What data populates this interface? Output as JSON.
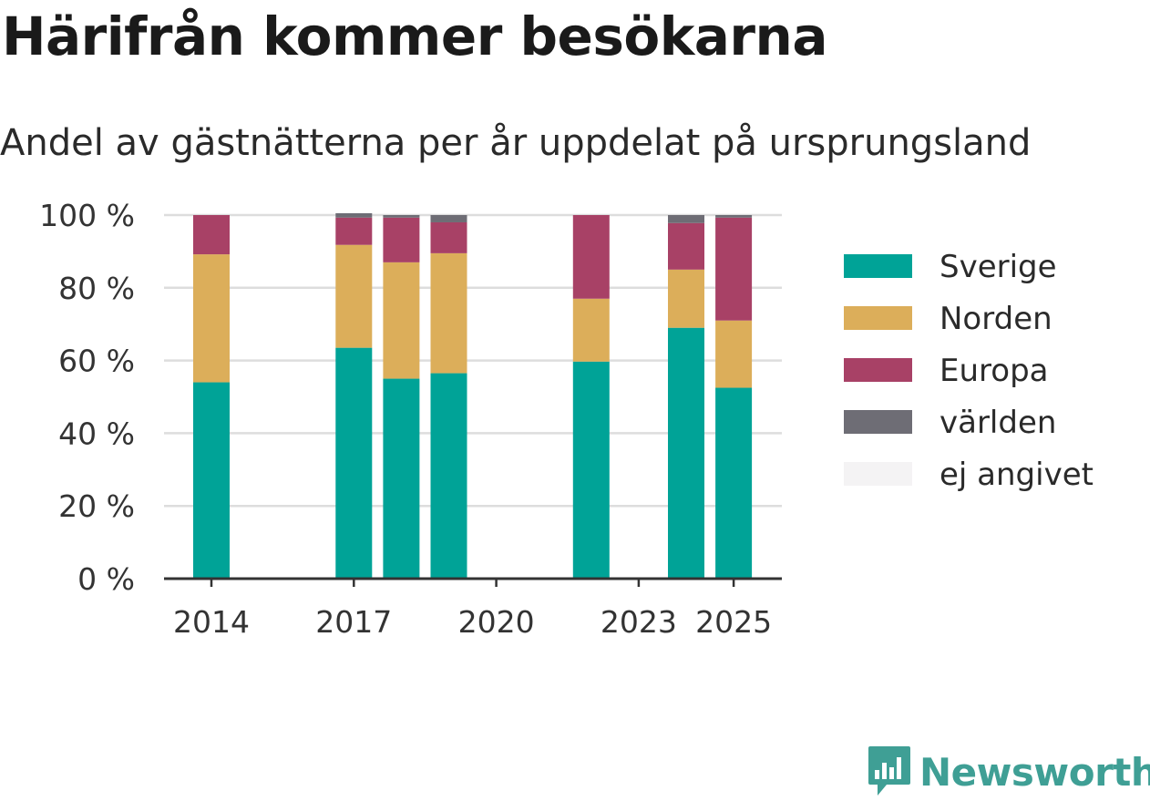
{
  "title": "Härifrån kommer besökarna",
  "subtitle": "Andel av gästnätterna per år uppdelat på ursprungsland",
  "brand": "Newsworthy",
  "colors": {
    "Sverige": "#00a397",
    "Norden": "#dcae5a",
    "Europa": "#a84166",
    "världen": "#6e6d75",
    "ej angivet": "#f4f3f4",
    "grid": "#dddddd",
    "axis": "#333333",
    "brand": "#3f9f95"
  },
  "chart_data": {
    "type": "bar",
    "stacked": true,
    "x": [
      2014,
      2017,
      2018,
      2019,
      2022,
      2024,
      2025
    ],
    "x_ticks": [
      "2014",
      "2017",
      "2020",
      "2023",
      "2025"
    ],
    "xlim": [
      2013.5,
      2025.5
    ],
    "y_ticks": [
      "0 %",
      "20 %",
      "40 %",
      "60 %",
      "80 %",
      "100 %"
    ],
    "ylim": [
      0,
      100
    ],
    "grid": true,
    "legend_position": "right",
    "series": [
      {
        "name": "Sverige",
        "values": [
          54,
          63.5,
          55,
          56.5,
          59.7,
          69,
          52.5
        ]
      },
      {
        "name": "Norden",
        "values": [
          35.2,
          28.3,
          32,
          33,
          17.3,
          16,
          18.5
        ]
      },
      {
        "name": "Europa",
        "values": [
          10.8,
          7.5,
          12.3,
          8.5,
          23,
          12.8,
          28.3
        ]
      },
      {
        "name": "världen",
        "values": [
          0,
          1.2,
          0.7,
          2,
          0,
          2.2,
          0.7
        ]
      },
      {
        "name": "ej angivet",
        "values": [
          0,
          0,
          0,
          0,
          0,
          0,
          0
        ]
      }
    ]
  }
}
